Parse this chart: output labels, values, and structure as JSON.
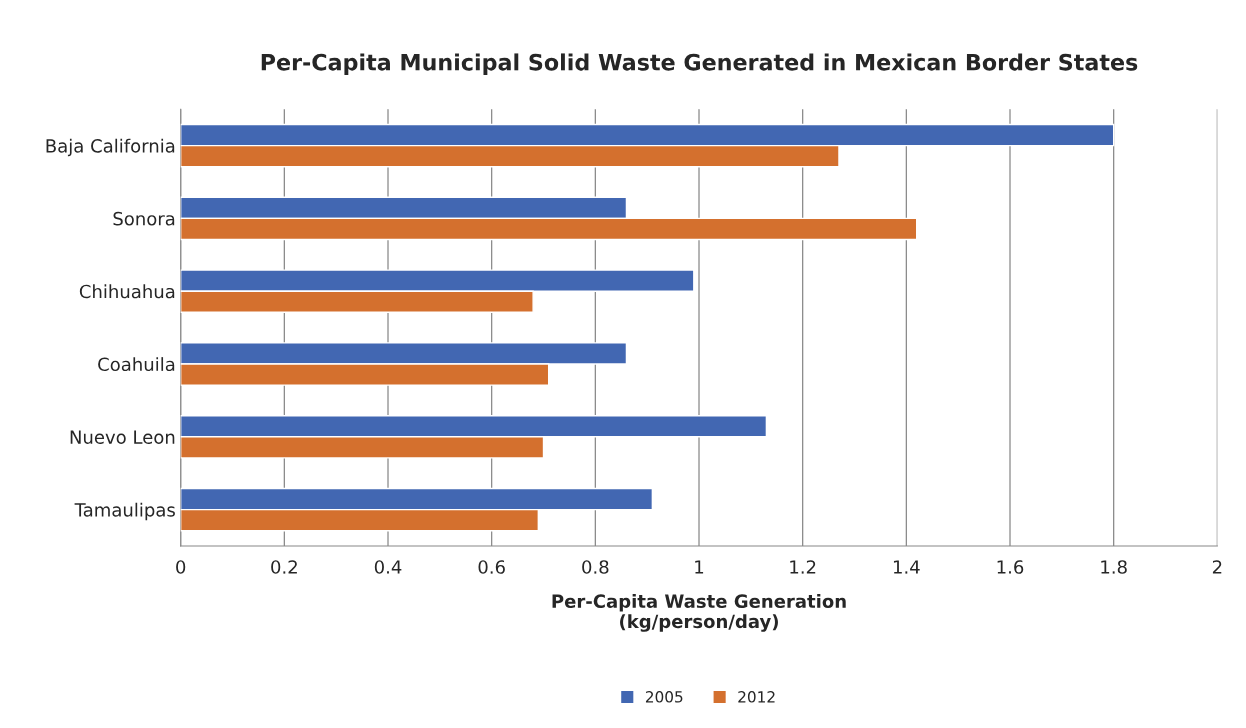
{
  "chart_data": {
    "type": "bar",
    "orientation": "horizontal",
    "title": "Per-Capita Municipal Solid Waste Generated in Mexican Border States",
    "xlabel": "Per-Capita Waste Generation\n(kg/person/day)",
    "categories": [
      "Baja California",
      "Sonora",
      "Chihuahua",
      "Coahuila",
      "Nuevo Leon",
      "Tamaulipas"
    ],
    "series": [
      {
        "name": "2005",
        "color": "#4267b2",
        "values": [
          1.8,
          0.86,
          0.99,
          0.86,
          1.13,
          0.91
        ]
      },
      {
        "name": "2012",
        "color": "#d4702e",
        "values": [
          1.27,
          1.42,
          0.68,
          0.71,
          0.7,
          0.69
        ]
      }
    ],
    "xlim": [
      0,
      2
    ],
    "xticks": [
      0,
      0.2,
      0.4,
      0.6,
      0.8,
      1,
      1.2,
      1.4,
      1.6,
      1.8,
      2
    ],
    "grid": "x",
    "legend": "bottom"
  }
}
